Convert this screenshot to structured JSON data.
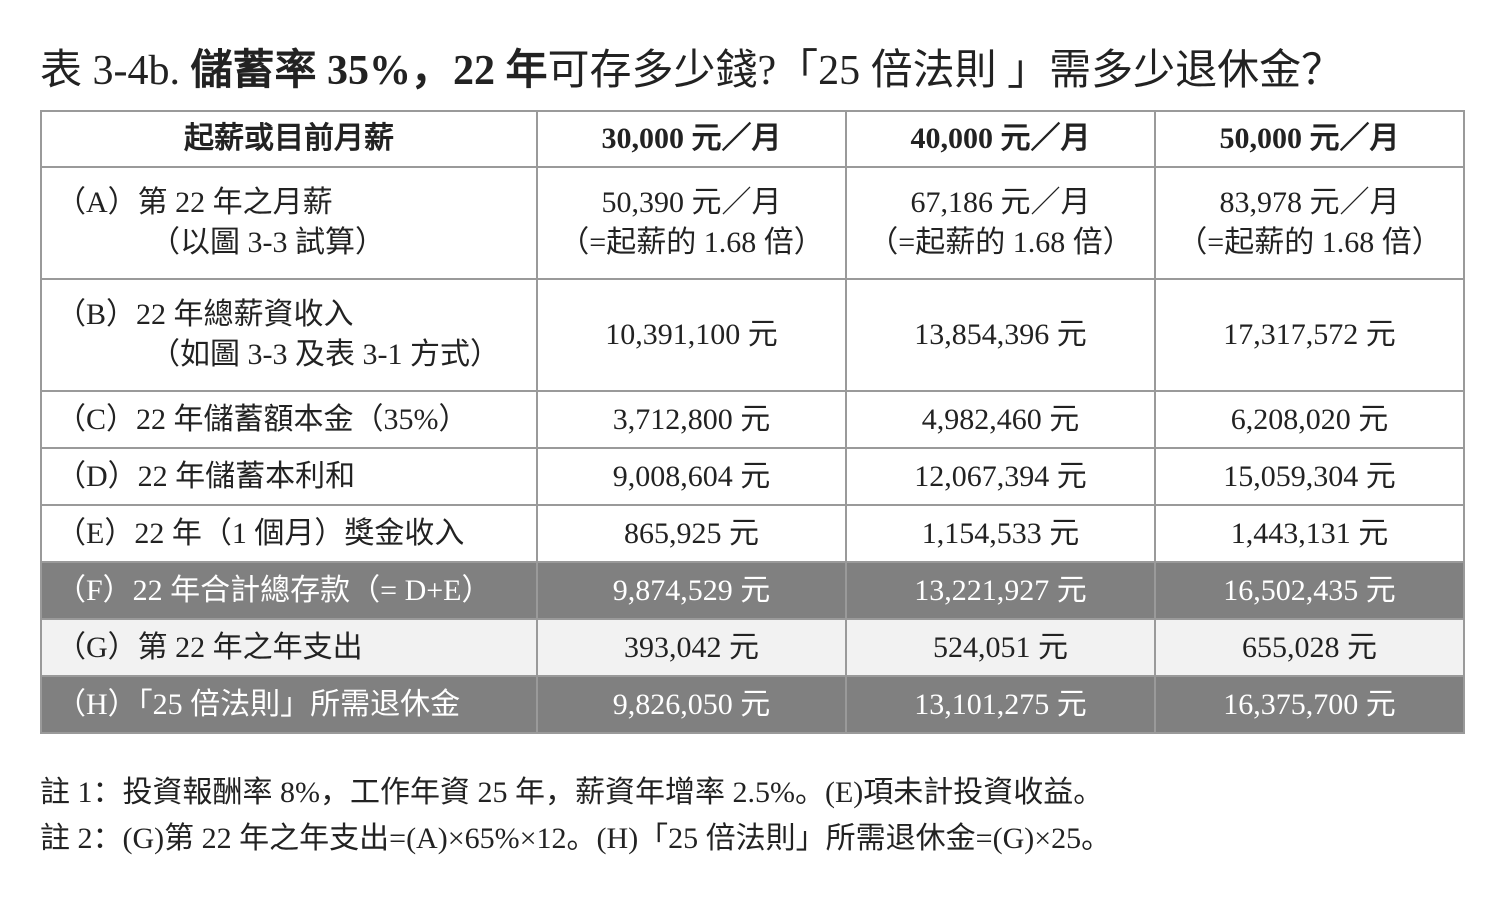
{
  "title": [
    "表 3-4b. ",
    "儲蓄率 35%，22 年",
    "可存多少錢?「25 倍法則 」需多少退休金？"
  ],
  "table": {
    "header": [
      "起薪或目前月薪",
      "30,000 元／月",
      "40,000 元／月",
      "50,000 元／月"
    ],
    "rows": [
      {
        "label": [
          "（A）第 22 年之月薪",
          "（以圖 3-3 試算）"
        ],
        "cells": [
          [
            "50,390 元／月",
            "（=起薪的 1.68 倍）"
          ],
          [
            "67,186 元／月",
            "（=起薪的 1.68 倍）"
          ],
          [
            "83,978 元／月",
            "（=起薪的 1.68 倍）"
          ]
        ]
      },
      {
        "label": [
          "（B）22 年總薪資收入",
          "（如圖 3-3 及表 3-1 方式）"
        ],
        "cells": [
          [
            "10,391,100 元"
          ],
          [
            "13,854,396 元"
          ],
          [
            "17,317,572 元"
          ]
        ]
      },
      {
        "label": [
          "（C）22 年儲蓄額本金（35%）"
        ],
        "cells": [
          [
            "3,712,800 元"
          ],
          [
            "4,982,460 元"
          ],
          [
            "6,208,020 元"
          ]
        ]
      },
      {
        "label": [
          "（D）22 年儲蓄本利和"
        ],
        "cells": [
          [
            "9,008,604 元"
          ],
          [
            "12,067,394 元"
          ],
          [
            "15,059,304 元"
          ]
        ]
      },
      {
        "label": [
          "（E）22 年（1 個月）獎金收入"
        ],
        "cells": [
          [
            "865,925 元"
          ],
          [
            "1,154,533 元"
          ],
          [
            "1,443,131 元"
          ]
        ]
      },
      {
        "label": [
          "（F）22 年合計總存款（= D+E）"
        ],
        "cells": [
          [
            "9,874,529 元"
          ],
          [
            "13,221,927 元"
          ],
          [
            "16,502,435 元"
          ]
        ]
      },
      {
        "label": [
          "（G）第 22 年之年支出"
        ],
        "cells": [
          [
            "393,042 元"
          ],
          [
            "524,051 元"
          ],
          [
            "655,028 元"
          ]
        ]
      },
      {
        "label": [
          "（H）「25 倍法則」所需退休金"
        ],
        "cells": [
          [
            "9,826,050 元"
          ],
          [
            "13,101,275 元"
          ],
          [
            "16,375,700 元"
          ]
        ]
      }
    ]
  },
  "notes": [
    "註 1：投資報酬率 8%，工作年資 25 年，薪資年增率 2.5%。(E)項未計投資收益。",
    "註 2：(G)第 22 年之年支出=(A)×65%×12。(H)「25 倍法則」所需退休金=(G)×25。"
  ]
}
